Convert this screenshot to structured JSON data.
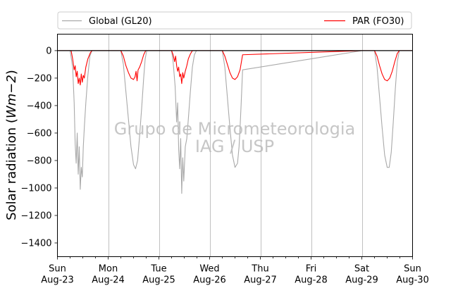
{
  "chart_data": {
    "type": "line",
    "ylabel": "Solar radiation (Wm−2)",
    "ylabel_parts": [
      "Solar radiation (",
      "Wm",
      "−2",
      ")"
    ],
    "ylim": [
      -1500,
      120
    ],
    "yticks": [
      0,
      -200,
      -400,
      -600,
      -800,
      -1000,
      -1200,
      -1400
    ],
    "xlim_days": [
      0,
      7
    ],
    "xticks": [
      {
        "day": 0,
        "line1": "Sun",
        "line2": "Aug-23"
      },
      {
        "day": 1,
        "line1": "Mon",
        "line2": "Aug-24"
      },
      {
        "day": 2,
        "line1": "Tue",
        "line2": "Aug-25"
      },
      {
        "day": 3,
        "line1": "Wed",
        "line2": "Aug-26"
      },
      {
        "day": 4,
        "line1": "Thu",
        "line2": "Aug-27"
      },
      {
        "day": 5,
        "line1": "Fri",
        "line2": "Aug-28"
      },
      {
        "day": 6,
        "line1": "Sat",
        "line2": "Aug-29"
      },
      {
        "day": 7,
        "line1": "Sun",
        "line2": "Aug-30"
      }
    ],
    "grid": "vertical",
    "legend": {
      "placement": "top",
      "columns": 2
    },
    "series": [
      {
        "name": "Global (GL20)",
        "color": "#a9a9a9",
        "points": [
          [
            0,
            0
          ],
          [
            0.25,
            0
          ],
          [
            0.3,
            -120
          ],
          [
            0.33,
            -380
          ],
          [
            0.35,
            -680
          ],
          [
            0.37,
            -820
          ],
          [
            0.39,
            -600
          ],
          [
            0.41,
            -900
          ],
          [
            0.43,
            -700
          ],
          [
            0.45,
            -1010
          ],
          [
            0.47,
            -850
          ],
          [
            0.49,
            -920
          ],
          [
            0.51,
            -700
          ],
          [
            0.53,
            -560
          ],
          [
            0.56,
            -380
          ],
          [
            0.6,
            -180
          ],
          [
            0.64,
            -40
          ],
          [
            0.68,
            0
          ],
          [
            1.25,
            0
          ],
          [
            1.3,
            -100
          ],
          [
            1.35,
            -300
          ],
          [
            1.4,
            -500
          ],
          [
            1.45,
            -700
          ],
          [
            1.5,
            -830
          ],
          [
            1.54,
            -860
          ],
          [
            1.58,
            -800
          ],
          [
            1.62,
            -620
          ],
          [
            1.66,
            -420
          ],
          [
            1.7,
            -200
          ],
          [
            1.73,
            -60
          ],
          [
            1.76,
            0
          ],
          [
            2.25,
            0
          ],
          [
            2.28,
            -80
          ],
          [
            2.32,
            -260
          ],
          [
            2.35,
            -520
          ],
          [
            2.37,
            -380
          ],
          [
            2.39,
            -720
          ],
          [
            2.41,
            -860
          ],
          [
            2.43,
            -640
          ],
          [
            2.45,
            -1040
          ],
          [
            2.47,
            -780
          ],
          [
            2.49,
            -950
          ],
          [
            2.52,
            -700
          ],
          [
            2.55,
            -640
          ],
          [
            2.58,
            -500
          ],
          [
            2.62,
            -300
          ],
          [
            2.66,
            -120
          ],
          [
            2.7,
            -30
          ],
          [
            2.74,
            0
          ],
          [
            3.25,
            0
          ],
          [
            3.3,
            -120
          ],
          [
            3.35,
            -340
          ],
          [
            3.4,
            -560
          ],
          [
            3.45,
            -760
          ],
          [
            3.5,
            -850
          ],
          [
            3.55,
            -820
          ],
          [
            3.58,
            -700
          ],
          [
            3.6,
            -560
          ],
          [
            3.62,
            -400
          ],
          [
            3.65,
            -140
          ],
          [
            6.0,
            0
          ],
          [
            6.25,
            0
          ],
          [
            6.3,
            -120
          ],
          [
            6.35,
            -340
          ],
          [
            6.4,
            -560
          ],
          [
            6.45,
            -760
          ],
          [
            6.5,
            -850
          ],
          [
            6.54,
            -850
          ],
          [
            6.58,
            -740
          ],
          [
            6.62,
            -520
          ],
          [
            6.66,
            -280
          ],
          [
            6.7,
            -80
          ],
          [
            6.74,
            0
          ],
          [
            7.0,
            0
          ]
        ]
      },
      {
        "name": "PAR (FO30)",
        "color": "#ff0000",
        "points": [
          [
            0,
            0
          ],
          [
            0.27,
            0
          ],
          [
            0.3,
            -60
          ],
          [
            0.33,
            -140
          ],
          [
            0.35,
            -110
          ],
          [
            0.37,
            -190
          ],
          [
            0.39,
            -150
          ],
          [
            0.41,
            -240
          ],
          [
            0.43,
            -200
          ],
          [
            0.45,
            -250
          ],
          [
            0.47,
            -170
          ],
          [
            0.49,
            -230
          ],
          [
            0.51,
            -180
          ],
          [
            0.53,
            -200
          ],
          [
            0.56,
            -120
          ],
          [
            0.6,
            -60
          ],
          [
            0.65,
            -15
          ],
          [
            0.68,
            0
          ],
          [
            1.25,
            0
          ],
          [
            1.3,
            -40
          ],
          [
            1.35,
            -110
          ],
          [
            1.4,
            -160
          ],
          [
            1.45,
            -200
          ],
          [
            1.5,
            -210
          ],
          [
            1.53,
            -190
          ],
          [
            1.55,
            -150
          ],
          [
            1.57,
            -220
          ],
          [
            1.59,
            -140
          ],
          [
            1.62,
            -120
          ],
          [
            1.66,
            -80
          ],
          [
            1.7,
            -30
          ],
          [
            1.74,
            0
          ],
          [
            2.25,
            0
          ],
          [
            2.28,
            -30
          ],
          [
            2.31,
            -80
          ],
          [
            2.33,
            -40
          ],
          [
            2.35,
            -110
          ],
          [
            2.37,
            -150
          ],
          [
            2.39,
            -120
          ],
          [
            2.41,
            -190
          ],
          [
            2.43,
            -170
          ],
          [
            2.45,
            -240
          ],
          [
            2.47,
            -160
          ],
          [
            2.49,
            -200
          ],
          [
            2.52,
            -150
          ],
          [
            2.55,
            -110
          ],
          [
            2.58,
            -60
          ],
          [
            2.62,
            -25
          ],
          [
            2.66,
            0
          ],
          [
            3.25,
            0
          ],
          [
            3.3,
            -40
          ],
          [
            3.35,
            -100
          ],
          [
            3.4,
            -160
          ],
          [
            3.45,
            -200
          ],
          [
            3.5,
            -210
          ],
          [
            3.55,
            -190
          ],
          [
            3.6,
            -140
          ],
          [
            3.65,
            -30
          ],
          [
            6.0,
            0
          ],
          [
            6.25,
            0
          ],
          [
            6.3,
            -40
          ],
          [
            6.35,
            -110
          ],
          [
            6.4,
            -170
          ],
          [
            6.45,
            -210
          ],
          [
            6.5,
            -220
          ],
          [
            6.55,
            -200
          ],
          [
            6.6,
            -150
          ],
          [
            6.65,
            -80
          ],
          [
            6.7,
            -20
          ],
          [
            6.74,
            0
          ],
          [
            7.0,
            0
          ]
        ]
      }
    ],
    "watermark": [
      "Grupo de Micrometeorologia",
      "IAG / USP"
    ]
  }
}
